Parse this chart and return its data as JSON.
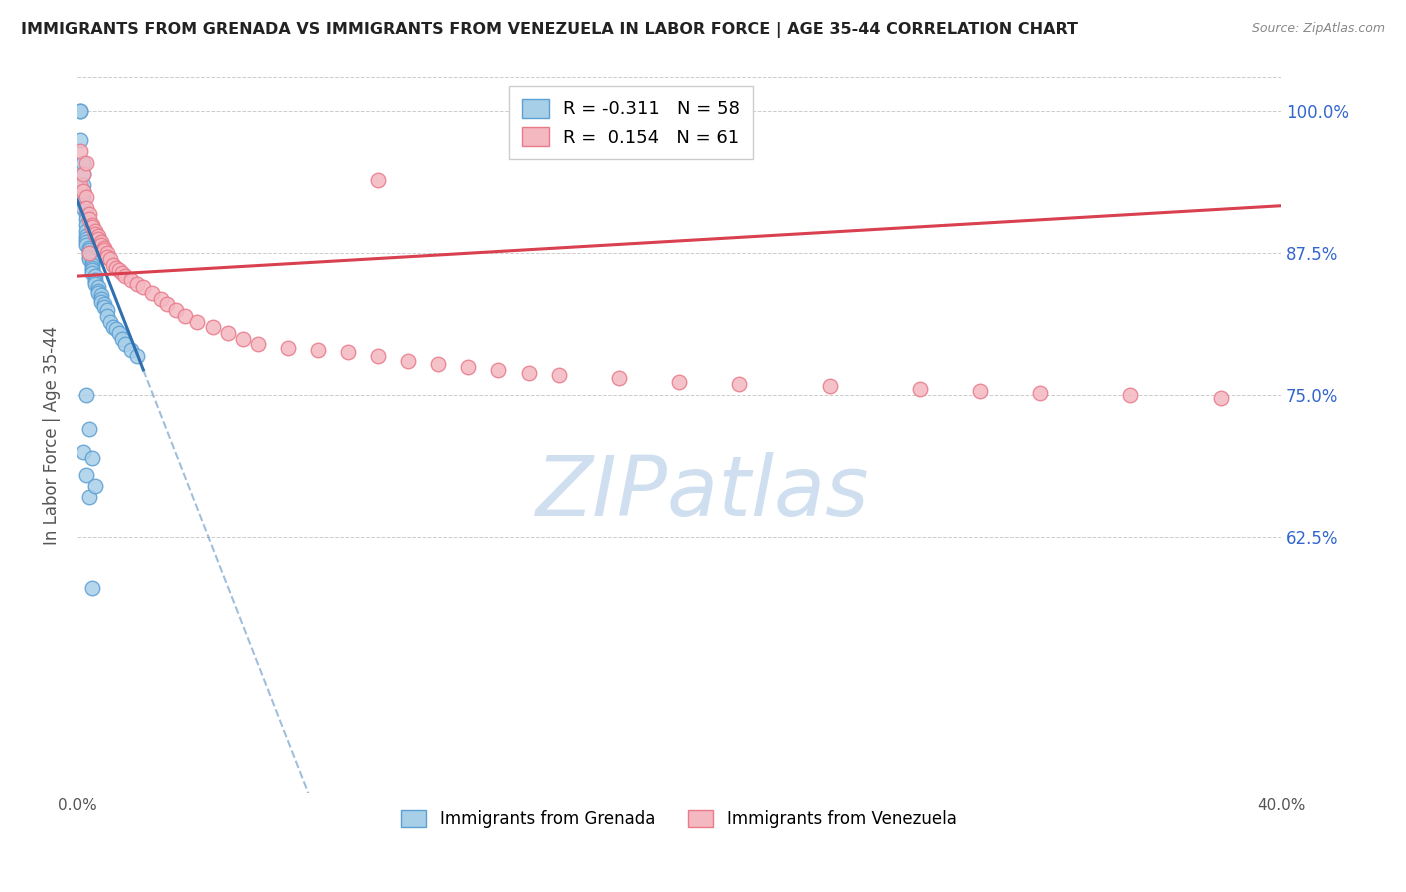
{
  "title": "IMMIGRANTS FROM GRENADA VS IMMIGRANTS FROM VENEZUELA IN LABOR FORCE | AGE 35-44 CORRELATION CHART",
  "source": "Source: ZipAtlas.com",
  "ylabel": "In Labor Force | Age 35-44",
  "xmin": 0.0,
  "xmax": 0.4,
  "ymin": 0.4,
  "ymax": 1.03,
  "yticks": [
    0.625,
    0.75,
    0.875,
    1.0
  ],
  "ytick_labels": [
    "62.5%",
    "75.0%",
    "87.5%",
    "100.0%"
  ],
  "xticks": [
    0.0,
    0.05,
    0.1,
    0.15,
    0.2,
    0.25,
    0.3,
    0.35,
    0.4
  ],
  "xtick_labels": [
    "0.0%",
    "",
    "",
    "",
    "",
    "",
    "",
    "",
    "40.0%"
  ],
  "grenada_color": "#a8cfe8",
  "venezuela_color": "#f4b8c1",
  "grenada_edge": "#5b9fd4",
  "venezuela_edge": "#e87a8a",
  "trend_grenada_color": "#3070b0",
  "trend_venezuela_color": "#d94050",
  "watermark_color": "#d0dff0",
  "R_grenada": -0.311,
  "N_grenada": 58,
  "R_venezuela": 0.154,
  "N_venezuela": 61,
  "grenada_x": [
    0.001,
    0.001,
    0.001,
    0.002,
    0.002,
    0.002,
    0.002,
    0.002,
    0.002,
    0.002,
    0.003,
    0.003,
    0.003,
    0.003,
    0.003,
    0.003,
    0.003,
    0.003,
    0.004,
    0.004,
    0.004,
    0.004,
    0.004,
    0.005,
    0.005,
    0.005,
    0.005,
    0.005,
    0.006,
    0.006,
    0.006,
    0.006,
    0.007,
    0.007,
    0.007,
    0.008,
    0.008,
    0.008,
    0.009,
    0.009,
    0.01,
    0.01,
    0.011,
    0.012,
    0.013,
    0.014,
    0.015,
    0.016,
    0.018,
    0.02,
    0.002,
    0.003,
    0.004,
    0.003,
    0.004,
    0.005,
    0.006,
    0.005
  ],
  "grenada_y": [
    1.0,
    1.0,
    0.975,
    0.955,
    0.945,
    0.935,
    0.93,
    0.925,
    0.92,
    0.915,
    0.91,
    0.905,
    0.9,
    0.895,
    0.89,
    0.888,
    0.885,
    0.882,
    0.88,
    0.878,
    0.875,
    0.872,
    0.87,
    0.868,
    0.865,
    0.862,
    0.86,
    0.858,
    0.855,
    0.852,
    0.85,
    0.848,
    0.845,
    0.842,
    0.84,
    0.838,
    0.835,
    0.832,
    0.83,
    0.828,
    0.825,
    0.82,
    0.815,
    0.81,
    0.808,
    0.805,
    0.8,
    0.795,
    0.79,
    0.785,
    0.7,
    0.68,
    0.66,
    0.75,
    0.72,
    0.695,
    0.67,
    0.58
  ],
  "venezuela_x": [
    0.001,
    0.001,
    0.002,
    0.002,
    0.003,
    0.003,
    0.004,
    0.004,
    0.005,
    0.005,
    0.006,
    0.006,
    0.007,
    0.007,
    0.008,
    0.008,
    0.009,
    0.009,
    0.01,
    0.01,
    0.011,
    0.012,
    0.013,
    0.014,
    0.015,
    0.016,
    0.018,
    0.02,
    0.022,
    0.025,
    0.028,
    0.03,
    0.033,
    0.036,
    0.04,
    0.045,
    0.05,
    0.055,
    0.06,
    0.07,
    0.08,
    0.09,
    0.1,
    0.11,
    0.12,
    0.13,
    0.14,
    0.15,
    0.16,
    0.18,
    0.2,
    0.22,
    0.25,
    0.28,
    0.3,
    0.32,
    0.35,
    0.38,
    0.003,
    0.004,
    0.1
  ],
  "venezuela_y": [
    0.965,
    0.935,
    0.945,
    0.93,
    0.925,
    0.915,
    0.91,
    0.905,
    0.9,
    0.898,
    0.895,
    0.892,
    0.89,
    0.888,
    0.885,
    0.882,
    0.88,
    0.878,
    0.875,
    0.872,
    0.87,
    0.865,
    0.862,
    0.86,
    0.858,
    0.855,
    0.852,
    0.848,
    0.845,
    0.84,
    0.835,
    0.83,
    0.825,
    0.82,
    0.815,
    0.81,
    0.805,
    0.8,
    0.795,
    0.792,
    0.79,
    0.788,
    0.785,
    0.78,
    0.778,
    0.775,
    0.772,
    0.77,
    0.768,
    0.765,
    0.762,
    0.76,
    0.758,
    0.756,
    0.754,
    0.752,
    0.75,
    0.748,
    0.955,
    0.875,
    0.94
  ],
  "background_color": "#ffffff",
  "grid_color": "#cccccc",
  "title_color": "#222222",
  "axis_label_color": "#555555",
  "right_tick_color": "#3366cc",
  "source_color": "#888888",
  "grenada_trend_x_solid_end": 0.022,
  "venezuela_trend_x_start": 0.0,
  "venezuela_trend_x_end": 0.4,
  "grenada_trend_intercept": 0.922,
  "grenada_trend_slope": -6.8,
  "venezuela_trend_intercept": 0.855,
  "venezuela_trend_slope": 0.155
}
